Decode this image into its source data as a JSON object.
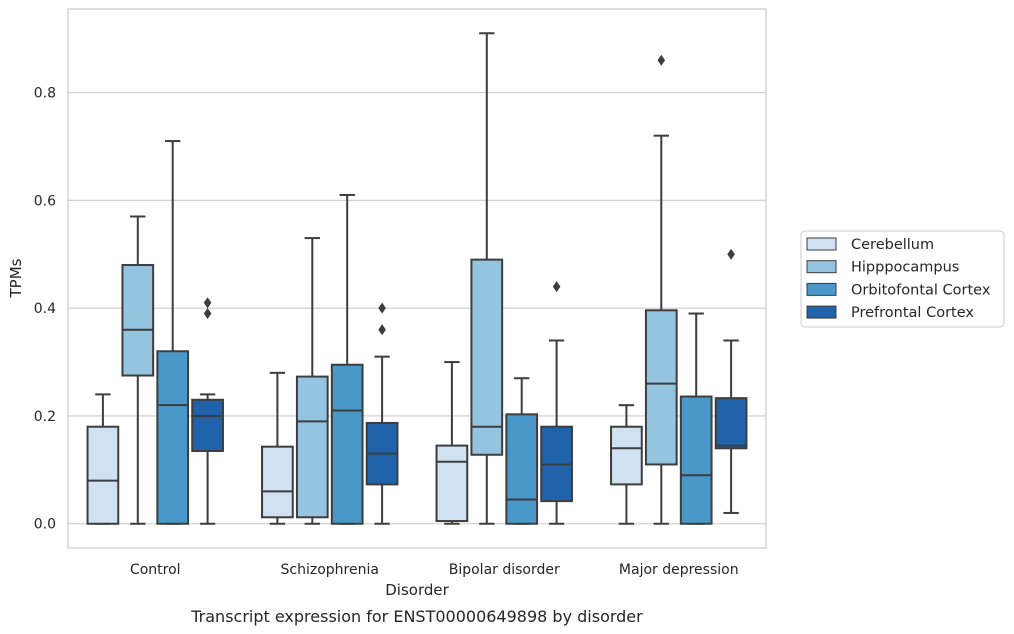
{
  "chart_data": {
    "type": "box",
    "caption": "Transcript expression for ENST00000649898 by disorder",
    "xlabel": "Disorder",
    "ylabel": "TPMs",
    "ylim": [
      -0.045,
      0.955
    ],
    "yticks": [
      "0.0",
      "0.2",
      "0.4",
      "0.6",
      "0.8"
    ],
    "grid": "horizontal",
    "legend_position": "right",
    "categories": [
      "Control",
      "Schizophrenia",
      "Bipolar disorder",
      "Major depression"
    ],
    "series": [
      {
        "name": "Cerebellum",
        "color": "#d0e1f2",
        "boxes": [
          {
            "whislo": 0.0,
            "q1": 0.0,
            "med": 0.08,
            "q3": 0.18,
            "whishi": 0.24,
            "fliers": []
          },
          {
            "whislo": 0.0,
            "q1": 0.012,
            "med": 0.06,
            "q3": 0.143,
            "whishi": 0.28,
            "fliers": []
          },
          {
            "whislo": 0.0,
            "q1": 0.005,
            "med": 0.115,
            "q3": 0.145,
            "whishi": 0.3,
            "fliers": []
          },
          {
            "whislo": 0.0,
            "q1": 0.073,
            "med": 0.14,
            "q3": 0.18,
            "whishi": 0.22,
            "fliers": []
          }
        ]
      },
      {
        "name": "Hipppocampus",
        "color": "#94c4df",
        "boxes": [
          {
            "whislo": 0.0,
            "q1": 0.275,
            "med": 0.36,
            "q3": 0.48,
            "whishi": 0.57,
            "fliers": []
          },
          {
            "whislo": 0.0,
            "q1": 0.012,
            "med": 0.19,
            "q3": 0.273,
            "whishi": 0.53,
            "fliers": []
          },
          {
            "whislo": 0.0,
            "q1": 0.128,
            "med": 0.18,
            "q3": 0.49,
            "whishi": 0.91,
            "fliers": []
          },
          {
            "whislo": 0.0,
            "q1": 0.11,
            "med": 0.26,
            "q3": 0.396,
            "whishi": 0.72,
            "fliers": [
              0.86
            ]
          }
        ]
      },
      {
        "name": "Orbitofontal Cortex",
        "color": "#4a98c9",
        "boxes": [
          {
            "whislo": 0.0,
            "q1": 0.0,
            "med": 0.22,
            "q3": 0.32,
            "whishi": 0.71,
            "fliers": []
          },
          {
            "whislo": 0.0,
            "q1": 0.0,
            "med": 0.21,
            "q3": 0.295,
            "whishi": 0.61,
            "fliers": []
          },
          {
            "whislo": 0.0,
            "q1": 0.0,
            "med": 0.045,
            "q3": 0.203,
            "whishi": 0.27,
            "fliers": []
          },
          {
            "whislo": 0.0,
            "q1": 0.0,
            "med": 0.09,
            "q3": 0.236,
            "whishi": 0.39,
            "fliers": []
          }
        ]
      },
      {
        "name": "Prefrontal Cortex",
        "color": "#2163aa",
        "boxes": [
          {
            "whislo": 0.0,
            "q1": 0.135,
            "med": 0.2,
            "q3": 0.23,
            "whishi": 0.24,
            "fliers": [
              0.39,
              0.41
            ]
          },
          {
            "whislo": 0.0,
            "q1": 0.073,
            "med": 0.13,
            "q3": 0.187,
            "whishi": 0.31,
            "fliers": [
              0.36,
              0.4
            ]
          },
          {
            "whislo": 0.0,
            "q1": 0.042,
            "med": 0.11,
            "q3": 0.18,
            "whishi": 0.34,
            "fliers": [
              0.44
            ]
          },
          {
            "whislo": 0.02,
            "q1": 0.14,
            "med": 0.145,
            "q3": 0.233,
            "whishi": 0.34,
            "fliers": [
              0.5
            ]
          }
        ]
      }
    ]
  }
}
